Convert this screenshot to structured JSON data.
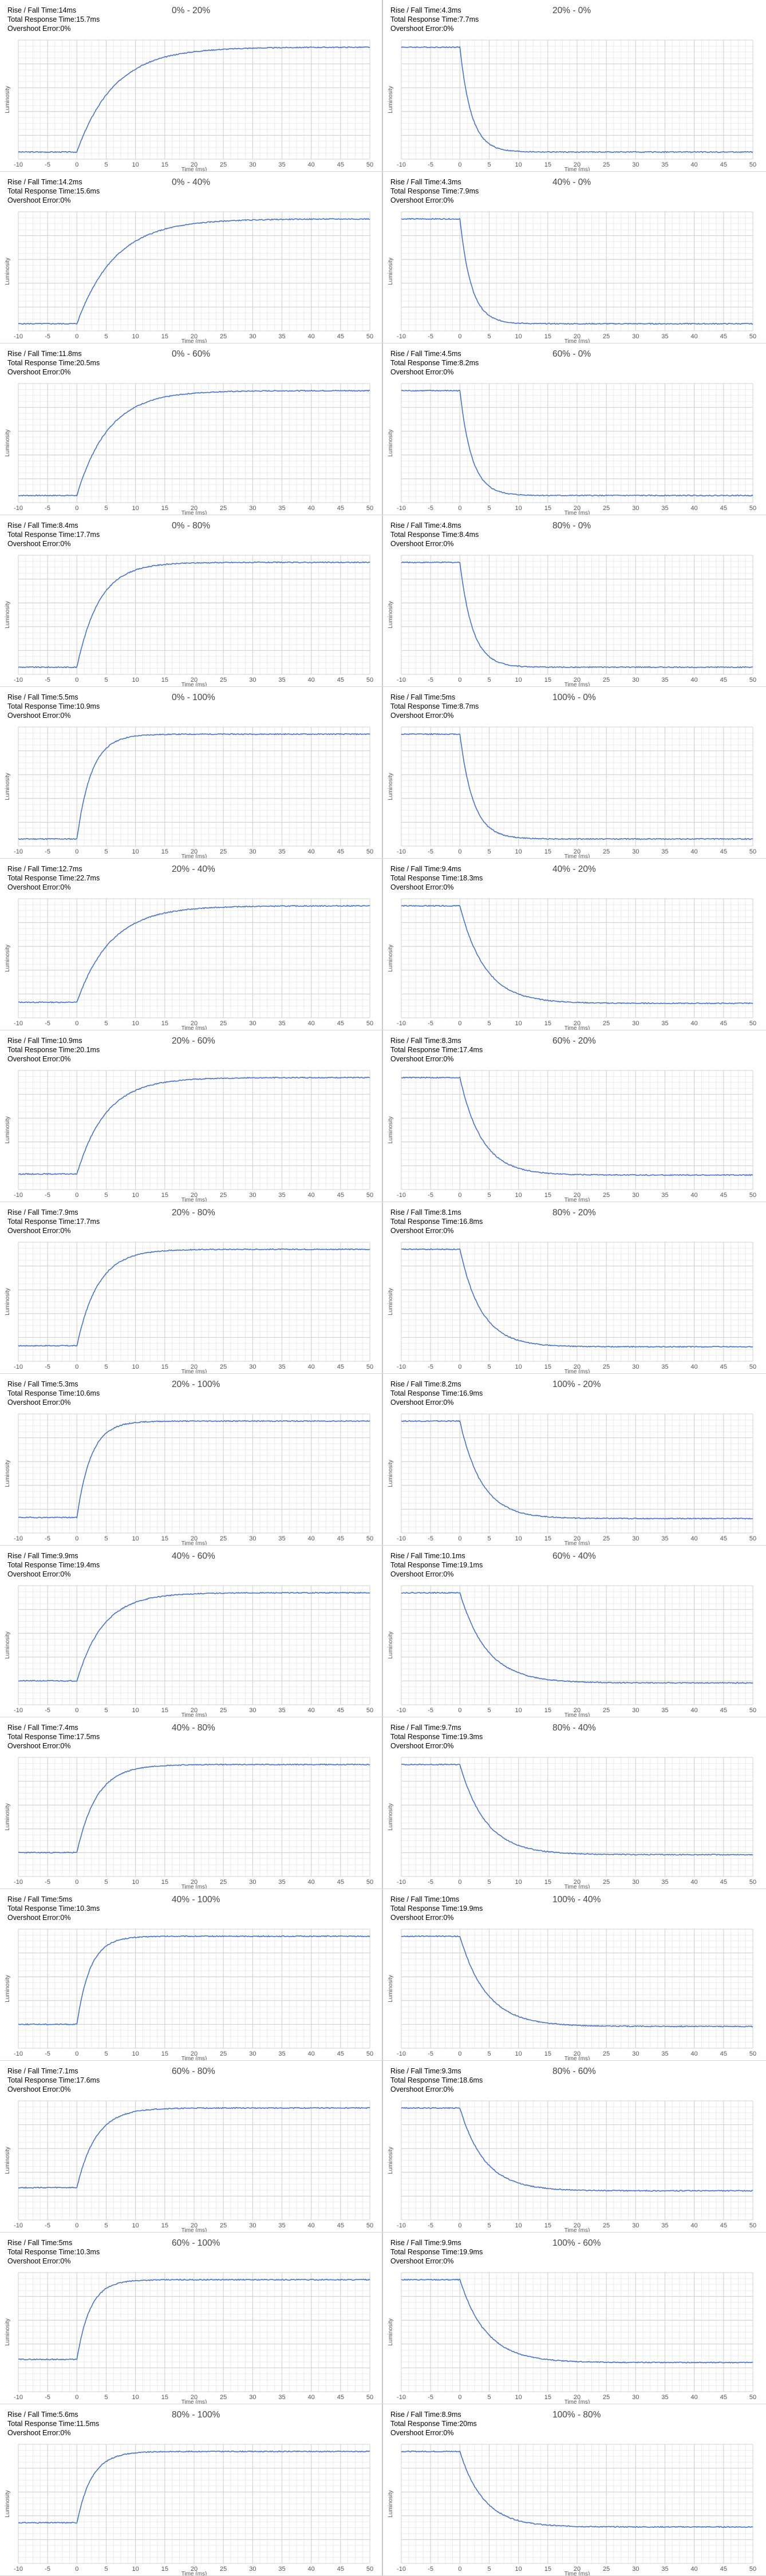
{
  "labels": {
    "rise_fall": "Rise / Fall Time:",
    "total_response": "Total Response Time:",
    "overshoot": "Overshoot Error:"
  },
  "chart_data": [
    {
      "type": "line",
      "title": "0% - 20%",
      "direction": "rise",
      "rise_fall_time": "14ms",
      "total_response_time": "15.7ms",
      "overshoot_error": "0%",
      "xlabel": "Time (ms)",
      "ylabel": "Luminosity",
      "xlim": [
        -10,
        50
      ],
      "x_ticks": [
        -10,
        -5,
        0,
        5,
        10,
        15,
        20,
        25,
        30,
        35,
        40,
        45,
        50
      ],
      "grid": true,
      "response_time_ms": 14
    },
    {
      "type": "line",
      "title": "20% - 0%",
      "direction": "fall",
      "rise_fall_time": "4.3ms",
      "total_response_time": "7.7ms",
      "overshoot_error": "0%",
      "xlabel": "Time (ms)",
      "ylabel": "Luminosity",
      "xlim": [
        -10,
        50
      ],
      "x_ticks": [
        -10,
        -5,
        0,
        5,
        10,
        15,
        20,
        25,
        30,
        35,
        40,
        45,
        50
      ],
      "grid": true,
      "response_time_ms": 4.3
    },
    {
      "type": "line",
      "title": "0% - 40%",
      "direction": "rise",
      "rise_fall_time": "14.2ms",
      "total_response_time": "15.6ms",
      "overshoot_error": "0%",
      "xlabel": "Time (ms)",
      "ylabel": "Luminosity",
      "xlim": [
        -10,
        50
      ],
      "x_ticks": [
        -10,
        -5,
        0,
        5,
        10,
        15,
        20,
        25,
        30,
        35,
        40,
        45,
        50
      ],
      "grid": true,
      "response_time_ms": 14.2
    },
    {
      "type": "line",
      "title": "40% - 0%",
      "direction": "fall",
      "rise_fall_time": "4.3ms",
      "total_response_time": "7.9ms",
      "overshoot_error": "0%",
      "xlabel": "Time (ms)",
      "ylabel": "Luminosity",
      "xlim": [
        -10,
        50
      ],
      "x_ticks": [
        -10,
        -5,
        0,
        5,
        10,
        15,
        20,
        25,
        30,
        35,
        40,
        45,
        50
      ],
      "grid": true,
      "response_time_ms": 4.3
    },
    {
      "type": "line",
      "title": "0% - 60%",
      "direction": "rise",
      "rise_fall_time": "11.8ms",
      "total_response_time": "20.5ms",
      "overshoot_error": "0%",
      "xlabel": "Time (ms)",
      "ylabel": "Luminosity",
      "xlim": [
        -10,
        50
      ],
      "x_ticks": [
        -10,
        -5,
        0,
        5,
        10,
        15,
        20,
        25,
        30,
        35,
        40,
        45,
        50
      ],
      "grid": true,
      "response_time_ms": 11.8
    },
    {
      "type": "line",
      "title": "60% - 0%",
      "direction": "fall",
      "rise_fall_time": "4.5ms",
      "total_response_time": "8.2ms",
      "overshoot_error": "0%",
      "xlabel": "Time (ms)",
      "ylabel": "Luminosity",
      "xlim": [
        -10,
        50
      ],
      "x_ticks": [
        -10,
        -5,
        0,
        5,
        10,
        15,
        20,
        25,
        30,
        35,
        40,
        45,
        50
      ],
      "grid": true,
      "response_time_ms": 4.5
    },
    {
      "type": "line",
      "title": "0% - 80%",
      "direction": "rise",
      "rise_fall_time": "8.4ms",
      "total_response_time": "17.7ms",
      "overshoot_error": "0%",
      "xlabel": "Time (ms)",
      "ylabel": "Luminosity",
      "xlim": [
        -10,
        50
      ],
      "x_ticks": [
        -10,
        -5,
        0,
        5,
        10,
        15,
        20,
        25,
        30,
        35,
        40,
        45,
        50
      ],
      "grid": true,
      "response_time_ms": 8.4
    },
    {
      "type": "line",
      "title": "80% - 0%",
      "direction": "fall",
      "rise_fall_time": "4.8ms",
      "total_response_time": "8.4ms",
      "overshoot_error": "0%",
      "xlabel": "Time (ms)",
      "ylabel": "Luminosity",
      "xlim": [
        -10,
        50
      ],
      "x_ticks": [
        -10,
        -5,
        0,
        5,
        10,
        15,
        20,
        25,
        30,
        35,
        40,
        45,
        50
      ],
      "grid": true,
      "response_time_ms": 4.8
    },
    {
      "type": "line",
      "title": "0% - 100%",
      "direction": "rise",
      "rise_fall_time": "5.5ms",
      "total_response_time": "10.9ms",
      "overshoot_error": "0%",
      "xlabel": "Time (ms)",
      "ylabel": "Luminosity",
      "xlim": [
        -10,
        50
      ],
      "x_ticks": [
        -10,
        -5,
        0,
        5,
        10,
        15,
        20,
        25,
        30,
        35,
        40,
        45,
        50
      ],
      "grid": true,
      "response_time_ms": 5.5
    },
    {
      "type": "line",
      "title": "100% - 0%",
      "direction": "fall",
      "rise_fall_time": "5ms",
      "total_response_time": "8.7ms",
      "overshoot_error": "0%",
      "xlabel": "Time (ms)",
      "ylabel": "Luminosity",
      "xlim": [
        -10,
        50
      ],
      "x_ticks": [
        -10,
        -5,
        0,
        5,
        10,
        15,
        20,
        25,
        30,
        35,
        40,
        45,
        50
      ],
      "grid": true,
      "response_time_ms": 5
    },
    {
      "type": "line",
      "title": "20% - 40%",
      "direction": "rise",
      "rise_fall_time": "12.7ms",
      "total_response_time": "22.7ms",
      "overshoot_error": "0%",
      "xlabel": "Time (ms)",
      "ylabel": "Luminosity",
      "xlim": [
        -10,
        50
      ],
      "x_ticks": [
        -10,
        -5,
        0,
        5,
        10,
        15,
        20,
        25,
        30,
        35,
        40,
        45,
        50
      ],
      "grid": true,
      "response_time_ms": 12.7
    },
    {
      "type": "line",
      "title": "40% - 20%",
      "direction": "fall",
      "rise_fall_time": "9.4ms",
      "total_response_time": "18.3ms",
      "overshoot_error": "0%",
      "xlabel": "Time (ms)",
      "ylabel": "Luminosity",
      "xlim": [
        -10,
        50
      ],
      "x_ticks": [
        -10,
        -5,
        0,
        5,
        10,
        15,
        20,
        25,
        30,
        35,
        40,
        45,
        50
      ],
      "grid": true,
      "response_time_ms": 9.4
    },
    {
      "type": "line",
      "title": "20% - 60%",
      "direction": "rise",
      "rise_fall_time": "10.9ms",
      "total_response_time": "20.1ms",
      "overshoot_error": "0%",
      "xlabel": "Time (ms)",
      "ylabel": "Luminosity",
      "xlim": [
        -10,
        50
      ],
      "x_ticks": [
        -10,
        -5,
        0,
        5,
        10,
        15,
        20,
        25,
        30,
        35,
        40,
        45,
        50
      ],
      "grid": true,
      "response_time_ms": 10.9
    },
    {
      "type": "line",
      "title": "60% - 20%",
      "direction": "fall",
      "rise_fall_time": "8.3ms",
      "total_response_time": "17.4ms",
      "overshoot_error": "0%",
      "xlabel": "Time (ms)",
      "ylabel": "Luminosity",
      "xlim": [
        -10,
        50
      ],
      "x_ticks": [
        -10,
        -5,
        0,
        5,
        10,
        15,
        20,
        25,
        30,
        35,
        40,
        45,
        50
      ],
      "grid": true,
      "response_time_ms": 8.3
    },
    {
      "type": "line",
      "title": "20% - 80%",
      "direction": "rise",
      "rise_fall_time": "7.9ms",
      "total_response_time": "17.7ms",
      "overshoot_error": "0%",
      "xlabel": "Time (ms)",
      "ylabel": "Luminosity",
      "xlim": [
        -10,
        50
      ],
      "x_ticks": [
        -10,
        -5,
        0,
        5,
        10,
        15,
        20,
        25,
        30,
        35,
        40,
        45,
        50
      ],
      "grid": true,
      "response_time_ms": 7.9
    },
    {
      "type": "line",
      "title": "80% - 20%",
      "direction": "fall",
      "rise_fall_time": "8.1ms",
      "total_response_time": "16.8ms",
      "overshoot_error": "0%",
      "xlabel": "Time (ms)",
      "ylabel": "Luminosity",
      "xlim": [
        -10,
        50
      ],
      "x_ticks": [
        -10,
        -5,
        0,
        5,
        10,
        15,
        20,
        25,
        30,
        35,
        40,
        45,
        50
      ],
      "grid": true,
      "response_time_ms": 8.1
    },
    {
      "type": "line",
      "title": "20% - 100%",
      "direction": "rise",
      "rise_fall_time": "5.3ms",
      "total_response_time": "10.6ms",
      "overshoot_error": "0%",
      "xlabel": "Time (ms)",
      "ylabel": "Luminosity",
      "xlim": [
        -10,
        50
      ],
      "x_ticks": [
        -10,
        -5,
        0,
        5,
        10,
        15,
        20,
        25,
        30,
        35,
        40,
        45,
        50
      ],
      "grid": true,
      "response_time_ms": 5.3
    },
    {
      "type": "line",
      "title": "100% - 20%",
      "direction": "fall",
      "rise_fall_time": "8.2ms",
      "total_response_time": "16.9ms",
      "overshoot_error": "0%",
      "xlabel": "Time (ms)",
      "ylabel": "Luminosity",
      "xlim": [
        -10,
        50
      ],
      "x_ticks": [
        -10,
        -5,
        0,
        5,
        10,
        15,
        20,
        25,
        30,
        35,
        40,
        45,
        50
      ],
      "grid": true,
      "response_time_ms": 8.2
    },
    {
      "type": "line",
      "title": "40% - 60%",
      "direction": "rise",
      "rise_fall_time": "9.9ms",
      "total_response_time": "19.4ms",
      "overshoot_error": "0%",
      "xlabel": "Time (ms)",
      "ylabel": "Luminosity",
      "xlim": [
        -10,
        50
      ],
      "x_ticks": [
        -10,
        -5,
        0,
        5,
        10,
        15,
        20,
        25,
        30,
        35,
        40,
        45,
        50
      ],
      "grid": true,
      "response_time_ms": 9.9
    },
    {
      "type": "line",
      "title": "60% - 40%",
      "direction": "fall",
      "rise_fall_time": "10.1ms",
      "total_response_time": "19.1ms",
      "overshoot_error": "0%",
      "xlabel": "Time (ms)",
      "ylabel": "Luminosity",
      "xlim": [
        -10,
        50
      ],
      "x_ticks": [
        -10,
        -5,
        0,
        5,
        10,
        15,
        20,
        25,
        30,
        35,
        40,
        45,
        50
      ],
      "grid": true,
      "response_time_ms": 10.1
    },
    {
      "type": "line",
      "title": "40% - 80%",
      "direction": "rise",
      "rise_fall_time": "7.4ms",
      "total_response_time": "17.5ms",
      "overshoot_error": "0%",
      "xlabel": "Time (ms)",
      "ylabel": "Luminosity",
      "xlim": [
        -10,
        50
      ],
      "x_ticks": [
        -10,
        -5,
        0,
        5,
        10,
        15,
        20,
        25,
        30,
        35,
        40,
        45,
        50
      ],
      "grid": true,
      "response_time_ms": 7.4
    },
    {
      "type": "line",
      "title": "80% - 40%",
      "direction": "fall",
      "rise_fall_time": "9.7ms",
      "total_response_time": "19.3ms",
      "overshoot_error": "0%",
      "xlabel": "Time (ms)",
      "ylabel": "Luminosity",
      "xlim": [
        -10,
        50
      ],
      "x_ticks": [
        -10,
        -5,
        0,
        5,
        10,
        15,
        20,
        25,
        30,
        35,
        40,
        45,
        50
      ],
      "grid": true,
      "response_time_ms": 9.7
    },
    {
      "type": "line",
      "title": "40% - 100%",
      "direction": "rise",
      "rise_fall_time": "5ms",
      "total_response_time": "10.3ms",
      "overshoot_error": "0%",
      "xlabel": "Time (ms)",
      "ylabel": "Luminosity",
      "xlim": [
        -10,
        50
      ],
      "x_ticks": [
        -10,
        -5,
        0,
        5,
        10,
        15,
        20,
        25,
        30,
        35,
        40,
        45,
        50
      ],
      "grid": true,
      "response_time_ms": 5
    },
    {
      "type": "line",
      "title": "100% - 40%",
      "direction": "fall",
      "rise_fall_time": "10ms",
      "total_response_time": "19.9ms",
      "overshoot_error": "0%",
      "xlabel": "Time (ms)",
      "ylabel": "Luminosity",
      "xlim": [
        -10,
        50
      ],
      "x_ticks": [
        -10,
        -5,
        0,
        5,
        10,
        15,
        20,
        25,
        30,
        35,
        40,
        45,
        50
      ],
      "grid": true,
      "response_time_ms": 10
    },
    {
      "type": "line",
      "title": "60% - 80%",
      "direction": "rise",
      "rise_fall_time": "7.1ms",
      "total_response_time": "17.6ms",
      "overshoot_error": "0%",
      "xlabel": "Time (ms)",
      "ylabel": "Luminosity",
      "xlim": [
        -10,
        50
      ],
      "x_ticks": [
        -10,
        -5,
        0,
        5,
        10,
        15,
        20,
        25,
        30,
        35,
        40,
        45,
        50
      ],
      "grid": true,
      "response_time_ms": 7.1
    },
    {
      "type": "line",
      "title": "80% - 60%",
      "direction": "fall",
      "rise_fall_time": "9.3ms",
      "total_response_time": "18.6ms",
      "overshoot_error": "0%",
      "xlabel": "Time (ms)",
      "ylabel": "Luminosity",
      "xlim": [
        -10,
        50
      ],
      "x_ticks": [
        -10,
        -5,
        0,
        5,
        10,
        15,
        20,
        25,
        30,
        35,
        40,
        45,
        50
      ],
      "grid": true,
      "response_time_ms": 9.3
    },
    {
      "type": "line",
      "title": "60% - 100%",
      "direction": "rise",
      "rise_fall_time": "5ms",
      "total_response_time": "10.3ms",
      "overshoot_error": "0%",
      "xlabel": "Time (ms)",
      "ylabel": "Luminosity",
      "xlim": [
        -10,
        50
      ],
      "x_ticks": [
        -10,
        -5,
        0,
        5,
        10,
        15,
        20,
        25,
        30,
        35,
        40,
        45,
        50
      ],
      "grid": true,
      "response_time_ms": 5
    },
    {
      "type": "line",
      "title": "100% - 60%",
      "direction": "fall",
      "rise_fall_time": "9.9ms",
      "total_response_time": "19.9ms",
      "overshoot_error": "0%",
      "xlabel": "Time (ms)",
      "ylabel": "Luminosity",
      "xlim": [
        -10,
        50
      ],
      "x_ticks": [
        -10,
        -5,
        0,
        5,
        10,
        15,
        20,
        25,
        30,
        35,
        40,
        45,
        50
      ],
      "grid": true,
      "response_time_ms": 9.9
    },
    {
      "type": "line",
      "title": "80% - 100%",
      "direction": "rise",
      "rise_fall_time": "5.6ms",
      "total_response_time": "11.5ms",
      "overshoot_error": "0%",
      "xlabel": "Time (ms)",
      "ylabel": "Luminosity",
      "xlim": [
        -10,
        50
      ],
      "x_ticks": [
        -10,
        -5,
        0,
        5,
        10,
        15,
        20,
        25,
        30,
        35,
        40,
        45,
        50
      ],
      "grid": true,
      "response_time_ms": 5.6
    },
    {
      "type": "line",
      "title": "100% - 80%",
      "direction": "fall",
      "rise_fall_time": "8.9ms",
      "total_response_time": "20ms",
      "overshoot_error": "0%",
      "xlabel": "Time (ms)",
      "ylabel": "Luminosity",
      "xlim": [
        -10,
        50
      ],
      "x_ticks": [
        -10,
        -5,
        0,
        5,
        10,
        15,
        20,
        25,
        30,
        35,
        40,
        45,
        50
      ],
      "grid": true,
      "response_time_ms": 8.9
    }
  ],
  "colors": {
    "line": "#4a72c4",
    "grid_major": "#d0d0d0",
    "grid_minor": "#ebebeb",
    "axis_text": "#555555"
  }
}
